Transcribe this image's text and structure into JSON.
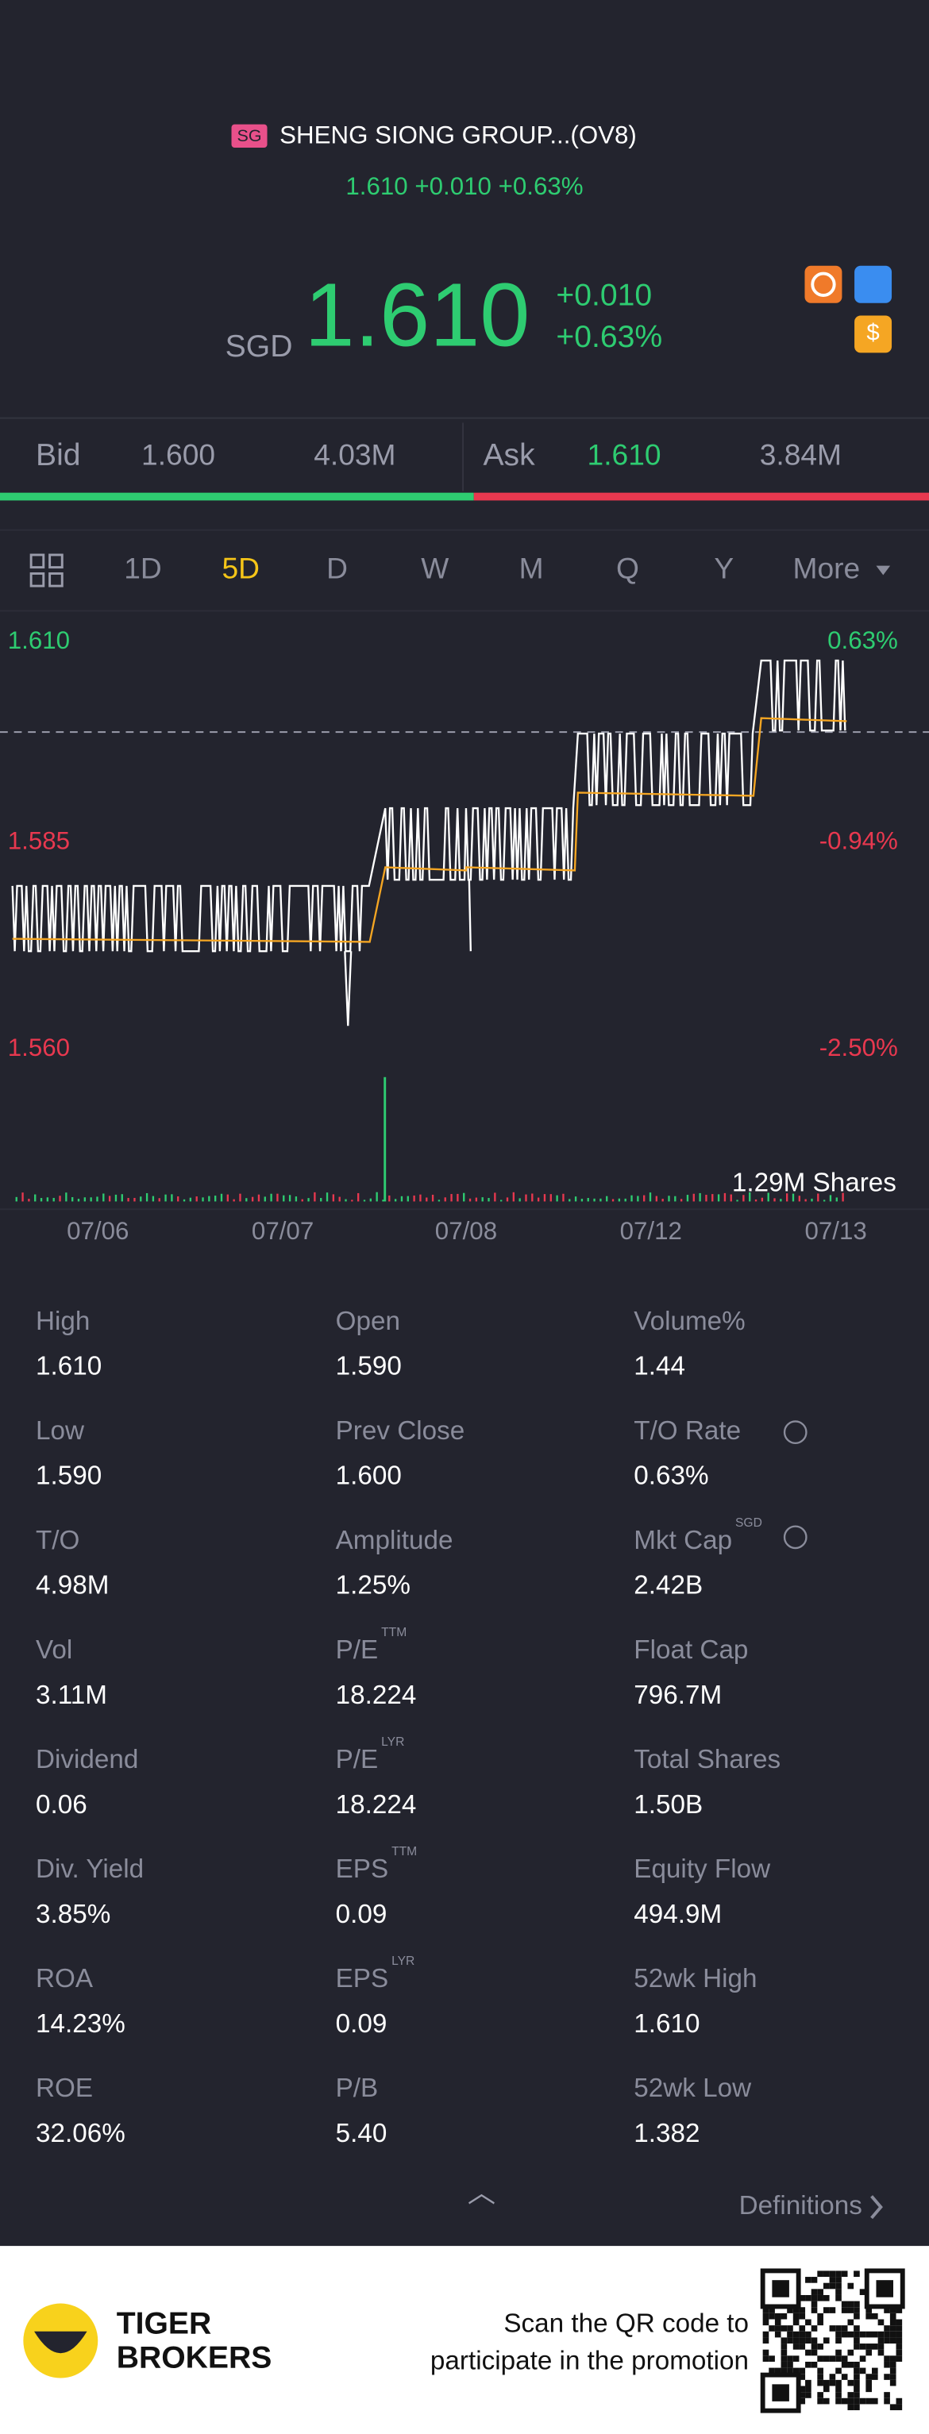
{
  "header": {
    "badge": "SG",
    "name": "SHENG SIONG GROUP...(OV8)",
    "quote_line": "1.610 +0.010 +0.63%",
    "currency": "SGD",
    "price": "1.610",
    "change": "+0.010",
    "change_pct": "+0.63%"
  },
  "bid": {
    "label": "Bid",
    "price": "1.600",
    "size": "4.03M"
  },
  "ask": {
    "label": "Ask",
    "price": "1.610",
    "size": "3.84M"
  },
  "tabs": [
    "1D",
    "5D",
    "D",
    "W",
    "M",
    "Q",
    "Y",
    "More"
  ],
  "chart": {
    "left_labels": [
      "1.610",
      "1.585",
      "1.560"
    ],
    "right_labels": [
      "0.63%",
      "-0.94%",
      "-2.50%"
    ],
    "volume_label": "1.29M Shares",
    "dates": [
      "07/06",
      "07/07",
      "07/08",
      "07/12",
      "07/13"
    ]
  },
  "stats": [
    [
      {
        "label": "High",
        "value": "1.610"
      },
      {
        "label": "Open",
        "value": "1.590"
      },
      {
        "label": "Volume%",
        "value": "1.44"
      }
    ],
    [
      {
        "label": "Low",
        "value": "1.590"
      },
      {
        "label": "Prev Close",
        "value": "1.600"
      },
      {
        "label": "T/O Rate",
        "value": "0.63%"
      }
    ],
    [
      {
        "label": "T/O",
        "value": "4.98M"
      },
      {
        "label": "Amplitude",
        "value": "1.25%"
      },
      {
        "label": "Mkt Cap",
        "sup": "SGD",
        "value": "2.42B"
      }
    ],
    [
      {
        "label": "Vol",
        "value": "3.11M"
      },
      {
        "label": "P/E",
        "sup": "TTM",
        "value": "18.224"
      },
      {
        "label": "Float Cap",
        "value": "796.7M"
      }
    ],
    [
      {
        "label": "Dividend",
        "value": "0.06"
      },
      {
        "label": "P/E",
        "sup": "LYR",
        "value": "18.224"
      },
      {
        "label": "Total Shares",
        "value": "1.50B"
      }
    ],
    [
      {
        "label": "Div. Yield",
        "value": "3.85%"
      },
      {
        "label": "EPS",
        "sup": "TTM",
        "value": "0.09"
      },
      {
        "label": "Equity Flow",
        "value": "494.9M"
      }
    ],
    [
      {
        "label": "ROA",
        "value": "14.23%"
      },
      {
        "label": "EPS",
        "sup": "LYR",
        "value": "0.09"
      },
      {
        "label": "52wk High",
        "value": "1.610"
      }
    ],
    [
      {
        "label": "ROE",
        "value": "32.06%"
      },
      {
        "label": "P/B",
        "value": "5.40"
      },
      {
        "label": "52wk Low",
        "value": "1.382"
      }
    ]
  ],
  "definitions": "Definitions",
  "footer": {
    "brand": [
      "TIGER",
      "BROKERS"
    ],
    "promo": [
      "Scan the QR code to",
      "participate in the promotion"
    ]
  }
}
